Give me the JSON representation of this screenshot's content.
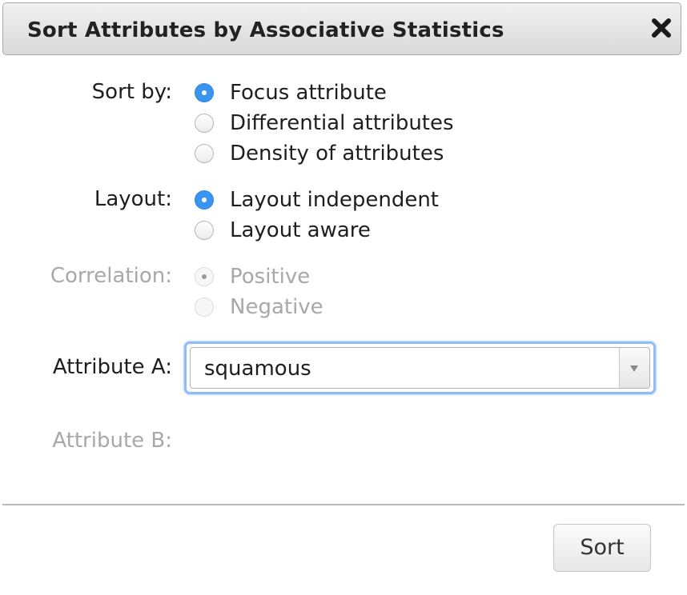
{
  "dialog": {
    "title": "Sort Attributes by Associative Statistics"
  },
  "sort_by": {
    "label": "Sort by:",
    "options": [
      {
        "label": "Focus attribute",
        "selected": true
      },
      {
        "label": "Differential attributes",
        "selected": false
      },
      {
        "label": "Density of attributes",
        "selected": false
      }
    ]
  },
  "layout": {
    "label": "Layout:",
    "options": [
      {
        "label": "Layout independent",
        "selected": true
      },
      {
        "label": "Layout aware",
        "selected": false
      }
    ]
  },
  "correlation": {
    "label": "Correlation:",
    "enabled": false,
    "options": [
      {
        "label": "Positive",
        "selected": true
      },
      {
        "label": "Negative",
        "selected": false
      }
    ]
  },
  "attribute_a": {
    "label": "Attribute A:",
    "value": "squamous"
  },
  "attribute_b": {
    "label": "Attribute B:",
    "enabled": false
  },
  "footer": {
    "sort_label": "Sort"
  },
  "colors": {
    "accent": "#3a95f0",
    "focus_ring": "#8ebcf5",
    "disabled_text": "#a8a8a8"
  }
}
